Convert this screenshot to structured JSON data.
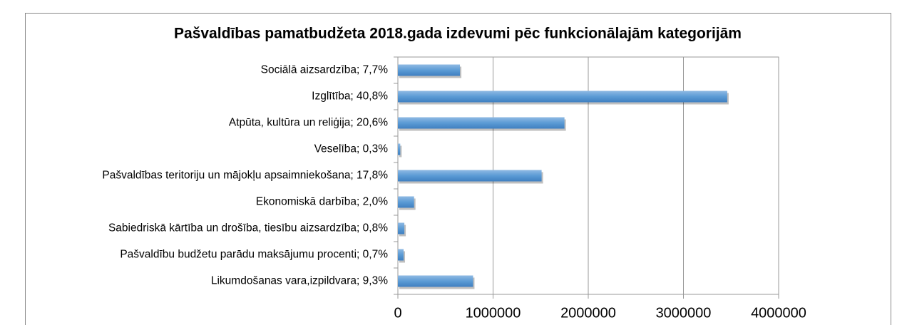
{
  "chart_data": {
    "type": "bar",
    "orientation": "horizontal",
    "title": "Pašvaldības pamatbudžeta 2018.gada izdevumi pēc funkcionālajām kategorijām",
    "categories": [
      "Sociālā aizsardzība; 7,7%",
      "Izglītība; 40,8%",
      "Atpūta, kultūra un reliģija; 20,6%",
      "Veselība; 0,3%",
      "Pašvaldības teritoriju un mājokļu apsaimniekošana; 17,8%",
      "Ekonomiskā darbība; 2,0%",
      "Sabiedriskā kārtība un drošība, tiesību aizsardzība; 0,8%",
      "Pašvaldību budžetu parādu maksājumu procenti; 0,7%",
      "Likumdošanas vara,izpildvara; 9,3%"
    ],
    "values": [
      652000,
      3460000,
      1750000,
      25000,
      1510000,
      170000,
      68000,
      60000,
      790000
    ],
    "color": "#5b9bd5",
    "xlim": [
      0,
      4000000
    ],
    "xticks": [
      0,
      1000000,
      2000000,
      3000000,
      4000000
    ],
    "grid": true
  }
}
